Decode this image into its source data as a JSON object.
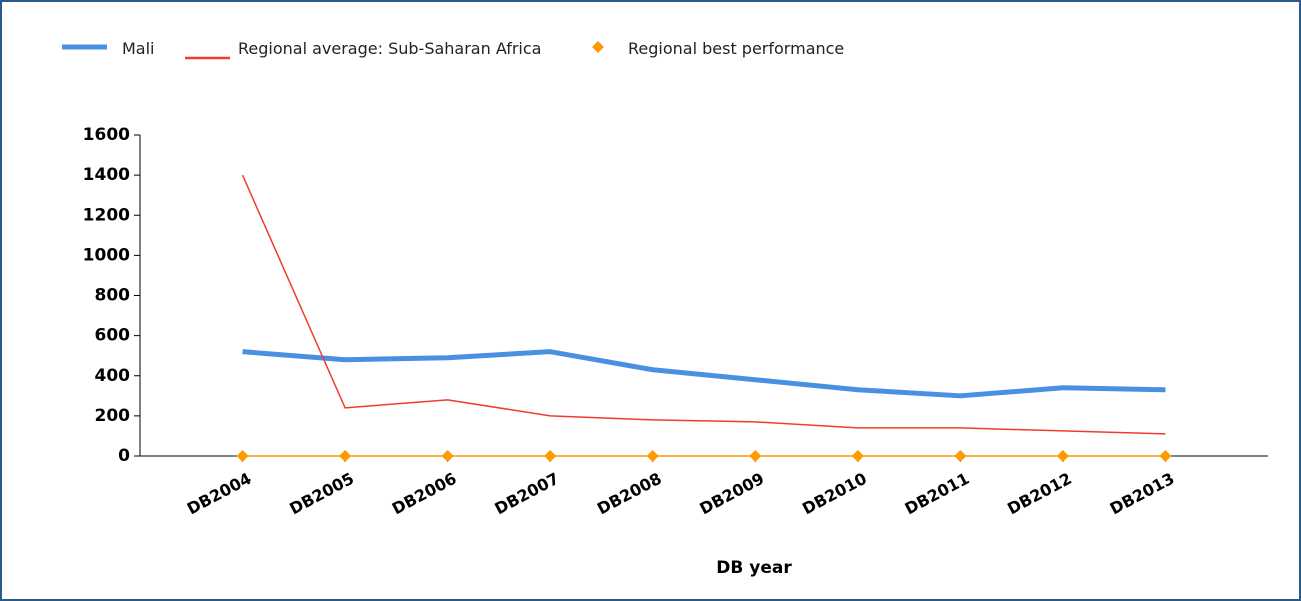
{
  "chart_data": {
    "type": "line",
    "categories": [
      "DB2004",
      "DB2005",
      "DB2006",
      "DB2007",
      "DB2008",
      "DB2009",
      "DB2010",
      "DB2011",
      "DB2012",
      "DB2013"
    ],
    "series": [
      {
        "name": "Mali",
        "color": "#4a90e2",
        "values": [
          520,
          480,
          490,
          520,
          430,
          380,
          330,
          300,
          340,
          330
        ]
      },
      {
        "name": "Regional average: Sub-Saharan Africa",
        "color": "#f03c2e",
        "values": [
          1400,
          240,
          280,
          200,
          180,
          170,
          140,
          140,
          125,
          110
        ]
      },
      {
        "name": "Regional best performance",
        "color": "#ff9900",
        "values": [
          0,
          0,
          0,
          0,
          0,
          0,
          0,
          0,
          0,
          0
        ]
      }
    ],
    "xlabel": "DB year",
    "ylim": [
      0,
      1600
    ],
    "yticks": [
      0,
      200,
      400,
      600,
      800,
      1000,
      1200,
      1400,
      1600
    ]
  }
}
